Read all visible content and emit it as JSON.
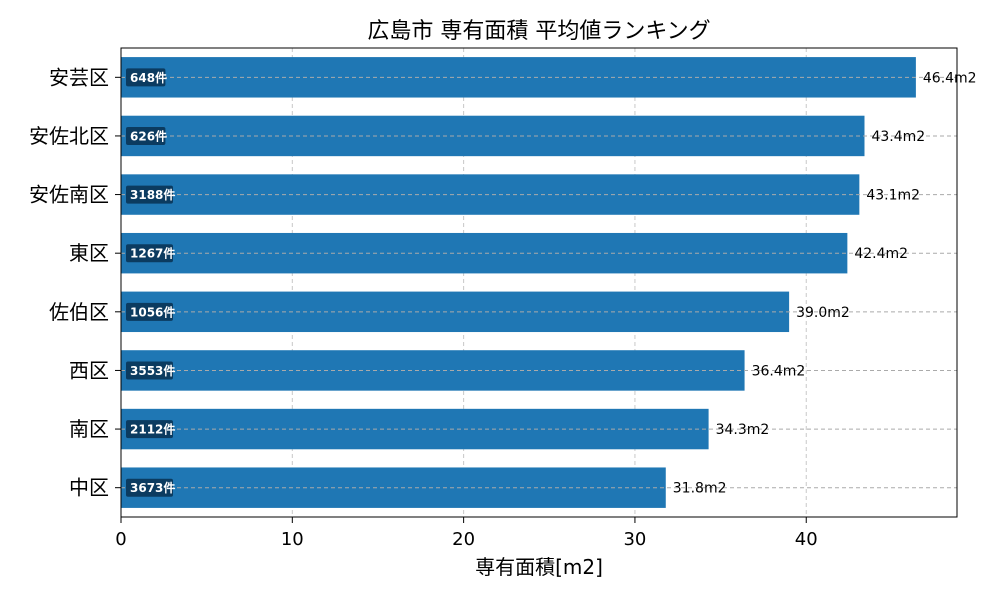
{
  "chart_data": {
    "type": "bar",
    "orientation": "horizontal",
    "title": "広島市 専有面積 平均値ランキング",
    "xlabel": "専有面積[m2]",
    "ylabel": "",
    "xlim": [
      0,
      48.8
    ],
    "xticks": [
      0,
      10,
      20,
      30,
      40
    ],
    "grid": true,
    "bar_color": "#1f77b4",
    "count_badge_color": "#0b3b60",
    "value_suffix": "m2",
    "count_suffix": "件",
    "categories": [
      "安芸区",
      "安佐北区",
      "安佐南区",
      "東区",
      "佐伯区",
      "西区",
      "南区",
      "中区"
    ],
    "values": [
      46.4,
      43.4,
      43.1,
      42.4,
      39.0,
      36.4,
      34.3,
      31.8
    ],
    "value_labels": [
      "46.4m2",
      "43.4m2",
      "43.1m2",
      "42.4m2",
      "39.0m2",
      "36.4m2",
      "34.3m2",
      "31.8m2"
    ],
    "counts": [
      "648件",
      "626件",
      "3188件",
      "1267件",
      "1056件",
      "3553件",
      "2112件",
      "3673件"
    ]
  }
}
